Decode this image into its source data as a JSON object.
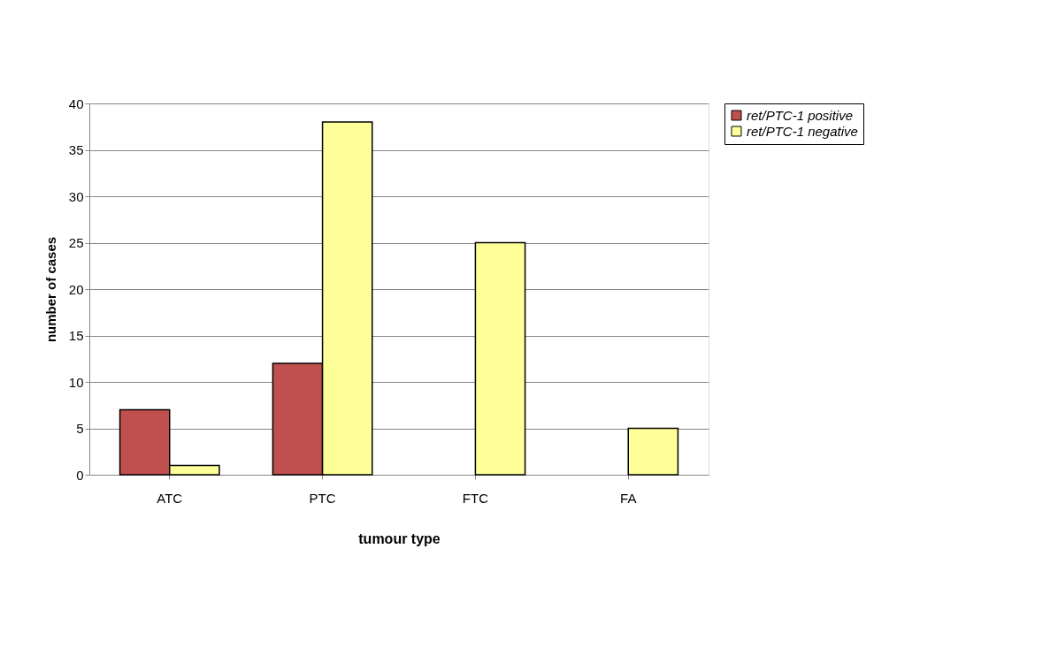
{
  "chart_data": {
    "type": "bar",
    "xlabel": "tumour type",
    "ylabel": "number of cases",
    "categories": [
      "ATC",
      "PTC",
      "FTC",
      "FA"
    ],
    "series": [
      {
        "name": "ret/PTC-1 positive",
        "color": "#c0504d",
        "values": [
          7,
          12,
          null,
          null
        ]
      },
      {
        "name": "ret/PTC-1 negative",
        "color": "#ffff99",
        "values": [
          1,
          38,
          25,
          5
        ]
      }
    ],
    "ylim": [
      0,
      40
    ],
    "yticks": [
      0,
      5,
      10,
      15,
      20,
      25,
      30,
      35,
      40
    ],
    "grid": "y",
    "legend": "right"
  }
}
